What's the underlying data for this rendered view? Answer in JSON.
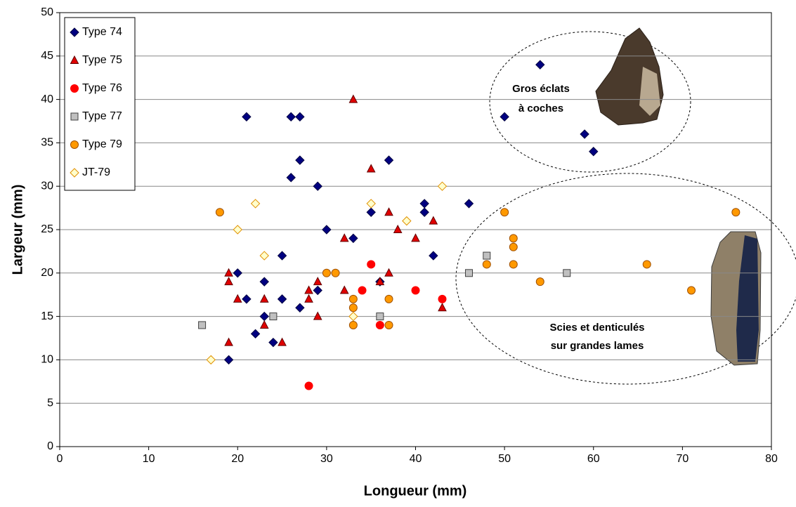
{
  "chart_data": {
    "type": "scatter",
    "xlabel": "Longueur (mm)",
    "ylabel": "Largeur (mm)",
    "xlim": [
      0,
      80
    ],
    "xticks": [
      0,
      10,
      20,
      30,
      40,
      50,
      60,
      70,
      80
    ],
    "ylim": [
      0,
      50
    ],
    "yticks": [
      0,
      5,
      10,
      15,
      20,
      25,
      30,
      35,
      40,
      45,
      50
    ],
    "grid": true,
    "legend": "upper left",
    "series": [
      {
        "name": "Type 74",
        "marker": "diamond",
        "color": "#000080",
        "edgecolor": "#000040",
        "x": [
          54,
          50,
          59,
          60,
          21,
          26,
          27,
          27,
          37,
          26,
          29,
          46,
          41,
          41,
          35,
          30,
          33,
          42,
          25,
          20,
          23,
          36,
          29,
          21,
          25,
          27,
          23,
          22,
          24,
          19
        ],
        "values": [
          44,
          38,
          36,
          34,
          38,
          38,
          38,
          33,
          33,
          31,
          30,
          28,
          28,
          27,
          27,
          25,
          24,
          22,
          22,
          20,
          19,
          19,
          18,
          17,
          17,
          16,
          15,
          13,
          12,
          10
        ]
      },
      {
        "name": "Type 75",
        "marker": "triangle",
        "color": "#e00000",
        "edgecolor": "#600000",
        "x": [
          33,
          35,
          37,
          38,
          42,
          32,
          40,
          19,
          37,
          19,
          29,
          36,
          28,
          32,
          20,
          23,
          28,
          43,
          23,
          29,
          19,
          25
        ],
        "values": [
          40,
          32,
          27,
          25,
          26,
          24,
          24,
          20,
          20,
          19,
          19,
          19,
          18,
          18,
          17,
          17,
          17,
          16,
          14,
          15,
          12,
          12
        ]
      },
      {
        "name": "Type 76",
        "marker": "circle",
        "color": "#ff0000",
        "edgecolor": "#ff0000",
        "x": [
          35,
          34,
          40,
          43,
          36,
          28
        ],
        "values": [
          21,
          18,
          18,
          17,
          14,
          7
        ]
      },
      {
        "name": "Type 77",
        "marker": "square",
        "color": "#c0c0c0",
        "edgecolor": "#404040",
        "x": [
          16,
          24,
          36,
          46,
          48,
          57
        ],
        "values": [
          14,
          15,
          15,
          20,
          22,
          20
        ]
      },
      {
        "name": "Type 79",
        "marker": "circle",
        "color": "#ff9900",
        "edgecolor": "#a05000",
        "x": [
          18,
          30,
          31,
          33,
          33,
          33,
          37,
          37,
          50,
          48,
          51,
          51,
          51,
          54,
          66,
          71,
          76
        ],
        "values": [
          27,
          20,
          20,
          17,
          16,
          14,
          17,
          14,
          27,
          21,
          24,
          23,
          21,
          19,
          21,
          18,
          27
        ]
      },
      {
        "name": "JT-79",
        "marker": "diamond",
        "color": "#ffffcc",
        "edgecolor": "#e09000",
        "x": [
          43,
          35,
          22,
          39,
          20,
          23,
          33,
          17
        ],
        "values": [
          30,
          28,
          28,
          26,
          25,
          22,
          15,
          10
        ]
      }
    ],
    "annotations": [
      "Gros éclats",
      "à coches",
      "Scies et denticulés",
      "sur grandes lames"
    ]
  }
}
